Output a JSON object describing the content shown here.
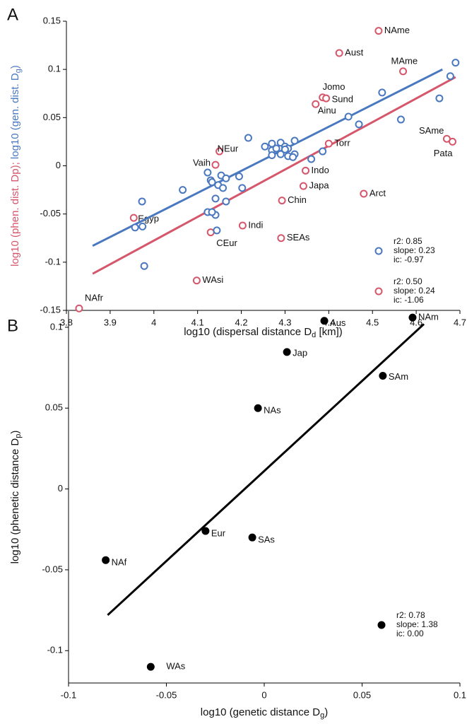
{
  "chart_data": [
    {
      "type": "scatter",
      "panel_label": "A",
      "xlabel": [
        "log10 (dispersal distance D",
        "d",
        " [km])"
      ],
      "ylabel": [
        "log10 (phen. dist. Dp); ",
        "log10 (gen. dist. D",
        "g",
        ")"
      ],
      "xlim": [
        3.8,
        4.7
      ],
      "ylim": [
        -0.15,
        0.15
      ],
      "xticks": [
        3.8,
        3.9,
        4,
        4.1,
        4.2,
        4.3,
        4.4,
        4.5,
        4.6,
        4.7
      ],
      "yticks": [
        -0.15,
        -0.1,
        -0.05,
        0,
        0.05,
        0.1,
        0.15
      ],
      "grid": false,
      "series": [
        {
          "color": "#d6566b",
          "marker": "open",
          "labels": [
            "NAme",
            "Aust",
            "MAme",
            "Jomo",
            "Sund",
            "Ainu",
            "SAme",
            "Pata",
            "Torr",
            "NEur",
            "Vaih",
            "Indo",
            "Japa",
            "Chin",
            "Arct",
            "Egyp",
            "Indi",
            "CEur",
            "SEAs",
            "WAsi",
            "NAfr"
          ],
          "x": [
            4.514,
            4.424,
            4.57,
            4.386,
            4.394,
            4.37,
            4.67,
            4.683,
            4.4,
            4.15,
            4.141,
            4.347,
            4.342,
            4.293,
            4.48,
            3.954,
            4.203,
            4.13,
            4.291,
            4.098,
            3.829
          ],
          "y": [
            0.14,
            0.117,
            0.098,
            0.071,
            0.07,
            0.064,
            0.028,
            0.025,
            0.023,
            0.015,
            0.001,
            -0.005,
            -0.021,
            -0.036,
            -0.029,
            -0.054,
            -0.062,
            -0.069,
            -0.075,
            -0.119,
            -0.148
          ],
          "fit": {
            "x": [
              3.86,
              4.69
            ],
            "y": [
              -0.112,
              0.092
            ]
          },
          "stats": [
            "r2: 0.50",
            "slope: 0.24",
            "ic: -1.06"
          ]
        },
        {
          "color": "#4a78bf",
          "marker": "open",
          "x": [
            4.69,
            4.678,
            4.653,
            4.522,
            4.445,
            4.469,
            4.565,
            4.386,
            4.36,
            4.216,
            4.254,
            4.27,
            4.29,
            4.322,
            4.27,
            4.28,
            4.3,
            4.307,
            4.29,
            4.27,
            4.307,
            4.322,
            4.318,
            4.3,
            4.123,
            4.13,
            4.133,
            4.147,
            4.154,
            4.158,
            4.165,
            4.195,
            4.202,
            4.141,
            4.165,
            3.973,
            4.066,
            4.123,
            4.141,
            3.957,
            3.974,
            3.978,
            4.144,
            4.133
          ],
          "y": [
            0.107,
            0.093,
            0.07,
            0.076,
            0.051,
            0.043,
            0.048,
            0.015,
            0.007,
            0.029,
            0.02,
            0.023,
            0.024,
            0.026,
            0.016,
            0.018,
            0.02,
            0.018,
            0.012,
            0.011,
            0.01,
            0.012,
            0.009,
            0.017,
            -0.007,
            -0.015,
            -0.017,
            -0.02,
            -0.01,
            -0.023,
            -0.013,
            -0.011,
            -0.023,
            -0.034,
            -0.037,
            -0.037,
            -0.025,
            -0.048,
            -0.051,
            -0.064,
            -0.063,
            -0.104,
            -0.067,
            -0.048
          ],
          "fit": {
            "x": [
              3.86,
              4.66
            ],
            "y": [
              -0.083,
              0.1
            ]
          },
          "stats": [
            "r2: 0.85",
            "slope: 0.23",
            "ic: -0.97"
          ]
        }
      ]
    },
    {
      "type": "scatter",
      "panel_label": "B",
      "xlabel": [
        "log10 (genetic distance D",
        "g",
        ")"
      ],
      "ylabel": [
        "log10 (phenetic distance D",
        "p",
        ")"
      ],
      "xlim": [
        -0.1,
        0.1
      ],
      "ylim": [
        -0.12,
        0.11
      ],
      "xticks": [
        -0.1,
        -0.05,
        0,
        0.05,
        0.1
      ],
      "yticks": [
        -0.1,
        -0.05,
        0,
        0.05,
        0.1
      ],
      "grid": false,
      "series": [
        {
          "color": "#000000",
          "marker": "filled",
          "labels": [
            "Aus",
            "NAm",
            "Jap",
            "SAm",
            "NAs",
            "Eur",
            "SAs",
            "NAf",
            "WAs"
          ],
          "x": [
            0.0307,
            0.0758,
            0.0116,
            0.0606,
            -0.0032,
            -0.03,
            -0.0061,
            -0.081,
            -0.058
          ],
          "y": [
            0.104,
            0.106,
            0.0847,
            0.07,
            0.05,
            -0.026,
            -0.03,
            -0.044,
            -0.11
          ],
          "fit": {
            "x": [
              -0.08,
              0.0816
            ],
            "y": [
              -0.078,
              0.102
            ]
          },
          "stats": [
            "r2: 0.78",
            "slope: 1.38",
            "ic: 0.00"
          ]
        }
      ]
    }
  ]
}
